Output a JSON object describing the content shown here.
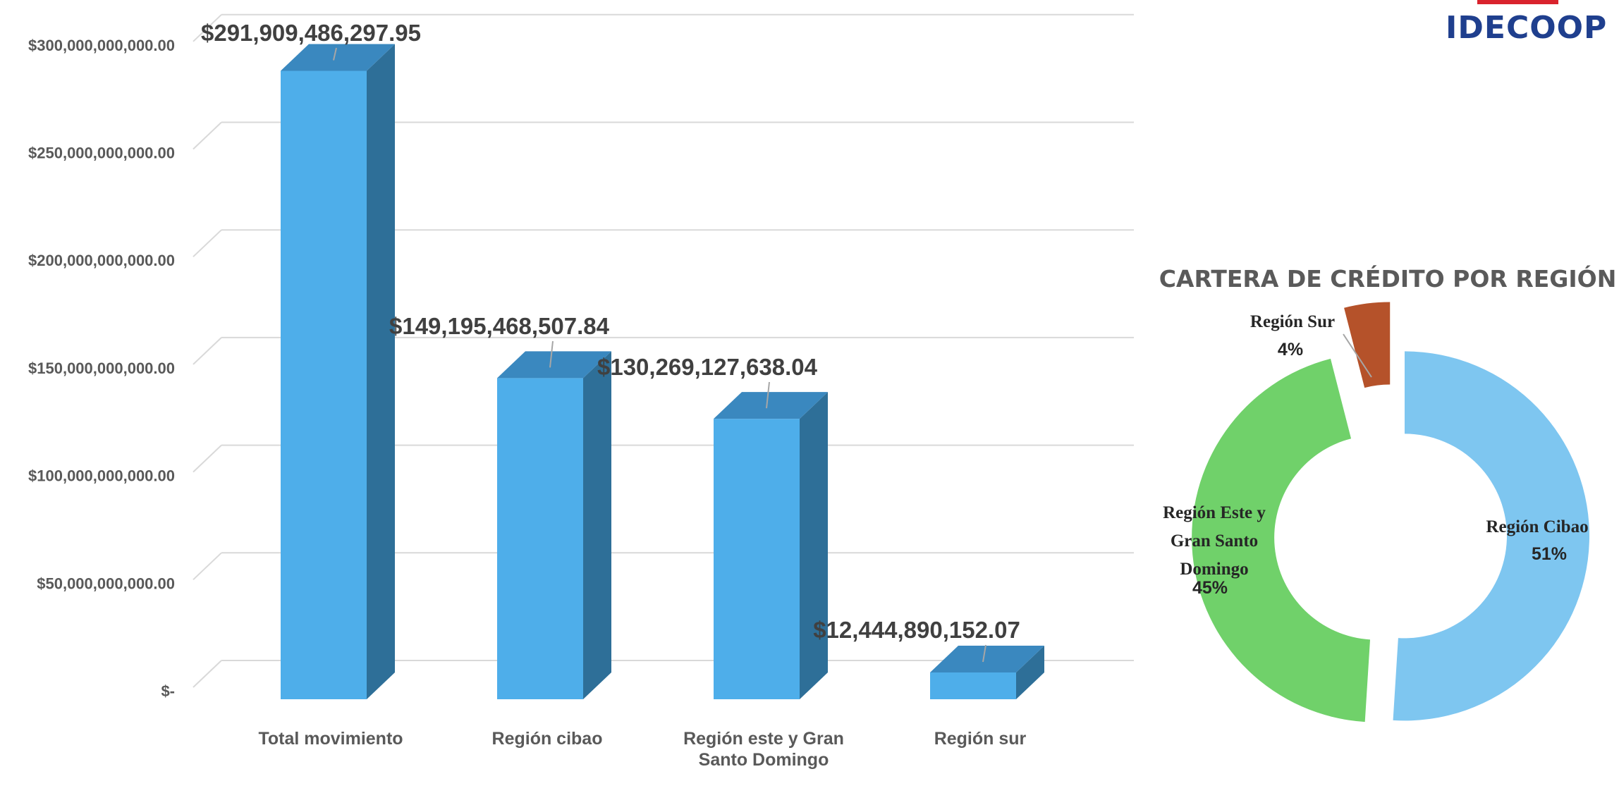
{
  "logo": {
    "text": "IDECOOP",
    "colors": {
      "text": "#1f3f8e",
      "accent": "#d9232d",
      "coin": "#f2c200"
    }
  },
  "chart_data": [
    {
      "type": "bar",
      "style": "3d-column",
      "categories": [
        "Total movimiento",
        "Región cibao",
        "Región este y Gran Santo Domingo",
        "Región sur"
      ],
      "values": [
        291909486297.95,
        149195468507.84,
        130269127638.04,
        12444890152.07
      ],
      "data_labels": [
        "$291,909,486,297.95",
        "$149,195,468,507.84",
        "$130,269,127,638.04",
        "$12,444,890,152.07"
      ],
      "y_ticks": [
        "$-",
        "$50,000,000,000.00",
        "$100,000,000,000.00",
        "$150,000,000,000.00",
        "$200,000,000,000.00",
        "$250,000,000,000.00",
        "$300,000,000,000.00"
      ],
      "ylim": [
        0,
        300000000000
      ],
      "grid": true,
      "colors": {
        "front": "#4eaeea",
        "side": "#2e6f98",
        "top": "#3a88bf"
      }
    },
    {
      "type": "pie",
      "style": "exploded-donut",
      "title": "CARTERA DE CRÉDITO POR REGIÓN",
      "slices": [
        {
          "label": "Región Cibao",
          "percent": "51%",
          "value": 51,
          "color": "#7ec6f0"
        },
        {
          "label": "Región Este y Gran Santo Domingo",
          "label_lines": [
            "Región Este y",
            "Gran Santo",
            "Domingo"
          ],
          "percent": "45%",
          "value": 45,
          "color": "#70d16a"
        },
        {
          "label": "Región Sur",
          "percent": "4%",
          "value": 4,
          "color": "#b5522a"
        }
      ]
    }
  ]
}
